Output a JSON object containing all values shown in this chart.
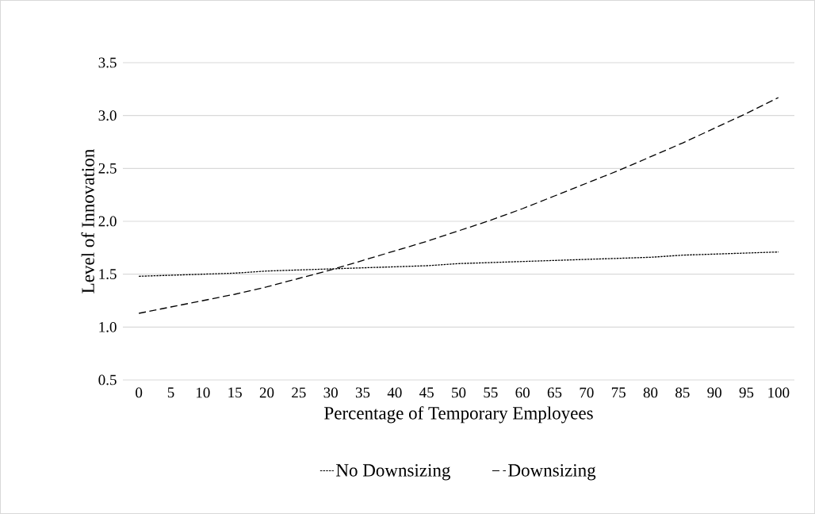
{
  "chart_data": {
    "type": "line",
    "xlabel": "Percentage of Temporary Employees",
    "ylabel": "Level of Innovation",
    "categories": [
      "0",
      "5",
      "10",
      "15",
      "20",
      "25",
      "30",
      "35",
      "40",
      "45",
      "50",
      "55",
      "60",
      "65",
      "70",
      "75",
      "80",
      "85",
      "90",
      "95",
      "100"
    ],
    "series": [
      {
        "name": "No Downsizing",
        "color": "#000000",
        "line_style": "dotted",
        "values": [
          1.48,
          1.49,
          1.5,
          1.51,
          1.53,
          1.54,
          1.55,
          1.56,
          1.57,
          1.58,
          1.6,
          1.61,
          1.62,
          1.63,
          1.64,
          1.65,
          1.66,
          1.68,
          1.69,
          1.7,
          1.71
        ]
      },
      {
        "name": "Downsizing",
        "color": "#000000",
        "line_style": "dashed",
        "values": [
          1.13,
          1.19,
          1.25,
          1.31,
          1.38,
          1.46,
          1.54,
          1.63,
          1.72,
          1.81,
          1.91,
          2.01,
          2.12,
          2.24,
          2.36,
          2.48,
          2.61,
          2.74,
          2.88,
          3.02,
          3.17
        ]
      }
    ],
    "ylim": [
      0.5,
      3.5
    ],
    "yticks": [
      0.5,
      {
        "value": 1,
        "label": "1.0"
      },
      1.5,
      {
        "value": 2,
        "label": "2.0"
      },
      2.5,
      {
        "value": 3,
        "label": "3.0"
      },
      3.5
    ],
    "grid": "y",
    "legend": "bottom",
    "marker": "none"
  }
}
